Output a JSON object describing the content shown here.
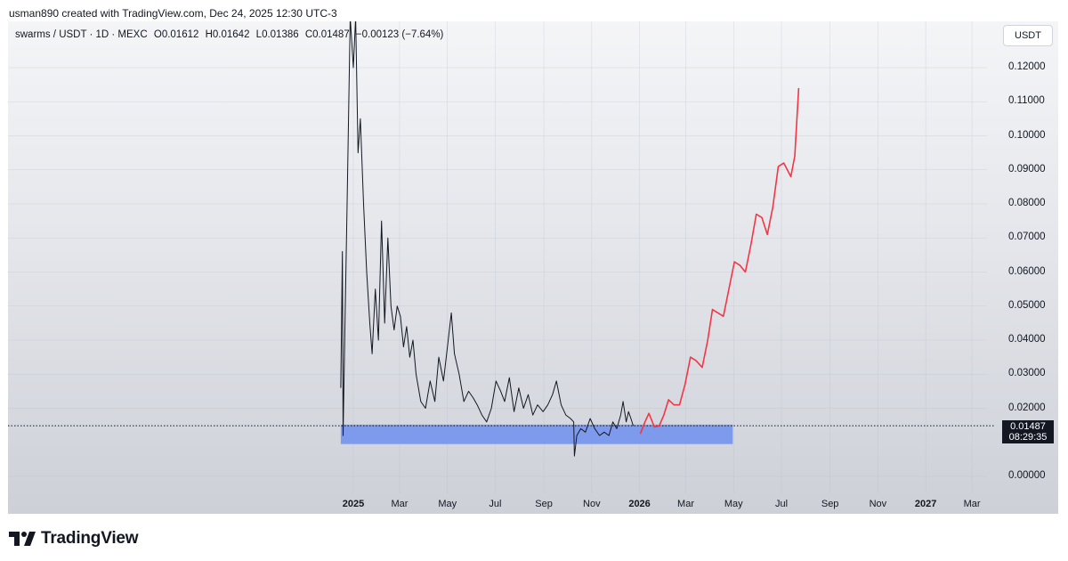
{
  "caption": "usman890 created with TradingView.com, Dec 24, 2025 12:30 UTC-3",
  "symbol_bar": {
    "pair": "swarms / USDT · 1D · MEXC",
    "open": "O0.01612",
    "high": "H0.01642",
    "low": "L0.01386",
    "close": "C0.01487",
    "change": "−0.00123 (−7.64%)"
  },
  "currency_button": "USDT",
  "price_tag": {
    "price": "0.01487",
    "countdown": "08:29:35"
  },
  "brand": "TradingView",
  "chart_data": {
    "type": "line",
    "y_axis": {
      "ticks": [
        "0.12000",
        "0.11000",
        "0.10000",
        "0.09000",
        "0.08000",
        "0.07000",
        "0.06000",
        "0.05000",
        "0.04000",
        "0.03000",
        "0.02000",
        "0.00000"
      ],
      "ylim": [
        -0.004,
        0.136
      ],
      "last_price_line": 0.01487
    },
    "x_axis": {
      "ticks": [
        {
          "label": "2025",
          "bold": true
        },
        {
          "label": "Mar",
          "bold": false
        },
        {
          "label": "May",
          "bold": false
        },
        {
          "label": "Jul",
          "bold": false
        },
        {
          "label": "Sep",
          "bold": false
        },
        {
          "label": "Nov",
          "bold": false
        },
        {
          "label": "2026",
          "bold": true
        },
        {
          "label": "Mar",
          "bold": false
        },
        {
          "label": "May",
          "bold": false
        },
        {
          "label": "Jul",
          "bold": false
        },
        {
          "label": "Sep",
          "bold": false
        },
        {
          "label": "Nov",
          "bold": false
        },
        {
          "label": "2027",
          "bold": true
        },
        {
          "label": "Mar",
          "bold": false
        }
      ]
    },
    "series": [
      {
        "color": "#131722",
        "points": [
          [
            "2024-12-16",
            0.026
          ],
          [
            "2024-12-18",
            0.066
          ],
          [
            "2024-12-19",
            0.012
          ],
          [
            "2024-12-21",
            0.04
          ],
          [
            "2024-12-24",
            0.08
          ],
          [
            "2024-12-28",
            0.135
          ],
          [
            "2025-01-01",
            0.12
          ],
          [
            "2025-01-04",
            0.136
          ],
          [
            "2025-01-07",
            0.095
          ],
          [
            "2025-01-10",
            0.105
          ],
          [
            "2025-01-14",
            0.08
          ],
          [
            "2025-01-18",
            0.06
          ],
          [
            "2025-01-22",
            0.045
          ],
          [
            "2025-01-25",
            0.036
          ],
          [
            "2025-01-29",
            0.055
          ],
          [
            "2025-02-02",
            0.04
          ],
          [
            "2025-02-06",
            0.075
          ],
          [
            "2025-02-10",
            0.045
          ],
          [
            "2025-02-14",
            0.07
          ],
          [
            "2025-02-18",
            0.05
          ],
          [
            "2025-02-22",
            0.043
          ],
          [
            "2025-02-26",
            0.05
          ],
          [
            "2025-03-02",
            0.047
          ],
          [
            "2025-03-06",
            0.038
          ],
          [
            "2025-03-10",
            0.044
          ],
          [
            "2025-03-14",
            0.035
          ],
          [
            "2025-03-18",
            0.04
          ],
          [
            "2025-03-22",
            0.03
          ],
          [
            "2025-03-28",
            0.022
          ],
          [
            "2025-04-03",
            0.02
          ],
          [
            "2025-04-09",
            0.028
          ],
          [
            "2025-04-15",
            0.022
          ],
          [
            "2025-04-20",
            0.035
          ],
          [
            "2025-04-26",
            0.028
          ],
          [
            "2025-05-02",
            0.04
          ],
          [
            "2025-05-06",
            0.048
          ],
          [
            "2025-05-10",
            0.036
          ],
          [
            "2025-05-16",
            0.03
          ],
          [
            "2025-05-22",
            0.022
          ],
          [
            "2025-05-28",
            0.025
          ],
          [
            "2025-06-03",
            0.023
          ],
          [
            "2025-06-08",
            0.021
          ],
          [
            "2025-06-14",
            0.018
          ],
          [
            "2025-06-20",
            0.016
          ],
          [
            "2025-06-26",
            0.02
          ],
          [
            "2025-07-02",
            0.028
          ],
          [
            "2025-07-08",
            0.025
          ],
          [
            "2025-07-13",
            0.022
          ],
          [
            "2025-07-19",
            0.029
          ],
          [
            "2025-07-25",
            0.019
          ],
          [
            "2025-07-31",
            0.026
          ],
          [
            "2025-08-06",
            0.02
          ],
          [
            "2025-08-12",
            0.024
          ],
          [
            "2025-08-18",
            0.018
          ],
          [
            "2025-08-24",
            0.021
          ],
          [
            "2025-08-31",
            0.019
          ],
          [
            "2025-09-06",
            0.021
          ],
          [
            "2025-09-12",
            0.024
          ],
          [
            "2025-09-17",
            0.028
          ],
          [
            "2025-09-23",
            0.021
          ],
          [
            "2025-09-29",
            0.018
          ],
          [
            "2025-10-05",
            0.017
          ],
          [
            "2025-10-09",
            0.016
          ],
          [
            "2025-10-10",
            0.006
          ],
          [
            "2025-10-13",
            0.012
          ],
          [
            "2025-10-18",
            0.014
          ],
          [
            "2025-10-24",
            0.013
          ],
          [
            "2025-10-30",
            0.017
          ],
          [
            "2025-11-05",
            0.014
          ],
          [
            "2025-11-11",
            0.012
          ],
          [
            "2025-11-17",
            0.013
          ],
          [
            "2025-11-23",
            0.012
          ],
          [
            "2025-11-28",
            0.016
          ],
          [
            "2025-12-03",
            0.014
          ],
          [
            "2025-12-08",
            0.018
          ],
          [
            "2025-12-11",
            0.022
          ],
          [
            "2025-12-15",
            0.016
          ],
          [
            "2025-12-18",
            0.019
          ],
          [
            "2025-12-21",
            0.017
          ],
          [
            "2025-12-24",
            0.01487
          ]
        ]
      },
      {
        "color": "#f23645",
        "points": [
          [
            "2026-01-02",
            0.0125
          ],
          [
            "2026-01-08",
            0.016
          ],
          [
            "2026-01-13",
            0.0185
          ],
          [
            "2026-01-20",
            0.0145
          ],
          [
            "2026-01-26",
            0.0148
          ],
          [
            "2026-02-01",
            0.018
          ],
          [
            "2026-02-07",
            0.0225
          ],
          [
            "2026-02-14",
            0.021
          ],
          [
            "2026-02-21",
            0.021
          ],
          [
            "2026-02-28",
            0.027
          ],
          [
            "2026-03-07",
            0.035
          ],
          [
            "2026-03-14",
            0.034
          ],
          [
            "2026-03-22",
            0.032
          ],
          [
            "2026-03-29",
            0.04
          ],
          [
            "2026-04-04",
            0.049
          ],
          [
            "2026-04-11",
            0.048
          ],
          [
            "2026-04-18",
            0.047
          ],
          [
            "2026-04-25",
            0.055
          ],
          [
            "2026-05-02",
            0.063
          ],
          [
            "2026-05-09",
            0.062
          ],
          [
            "2026-05-16",
            0.06
          ],
          [
            "2026-05-23",
            0.068
          ],
          [
            "2026-05-30",
            0.077
          ],
          [
            "2026-06-06",
            0.076
          ],
          [
            "2026-06-13",
            0.071
          ],
          [
            "2026-06-20",
            0.079
          ],
          [
            "2026-06-27",
            0.091
          ],
          [
            "2026-07-04",
            0.092
          ],
          [
            "2026-07-13",
            0.088
          ],
          [
            "2026-07-18",
            0.094
          ],
          [
            "2026-07-23",
            0.114
          ]
        ]
      }
    ],
    "support_zone": {
      "from": "2024-12-16",
      "to": "2026-04-30",
      "low": 0.0095,
      "high": 0.0152,
      "color": "#6f8ff0"
    }
  }
}
